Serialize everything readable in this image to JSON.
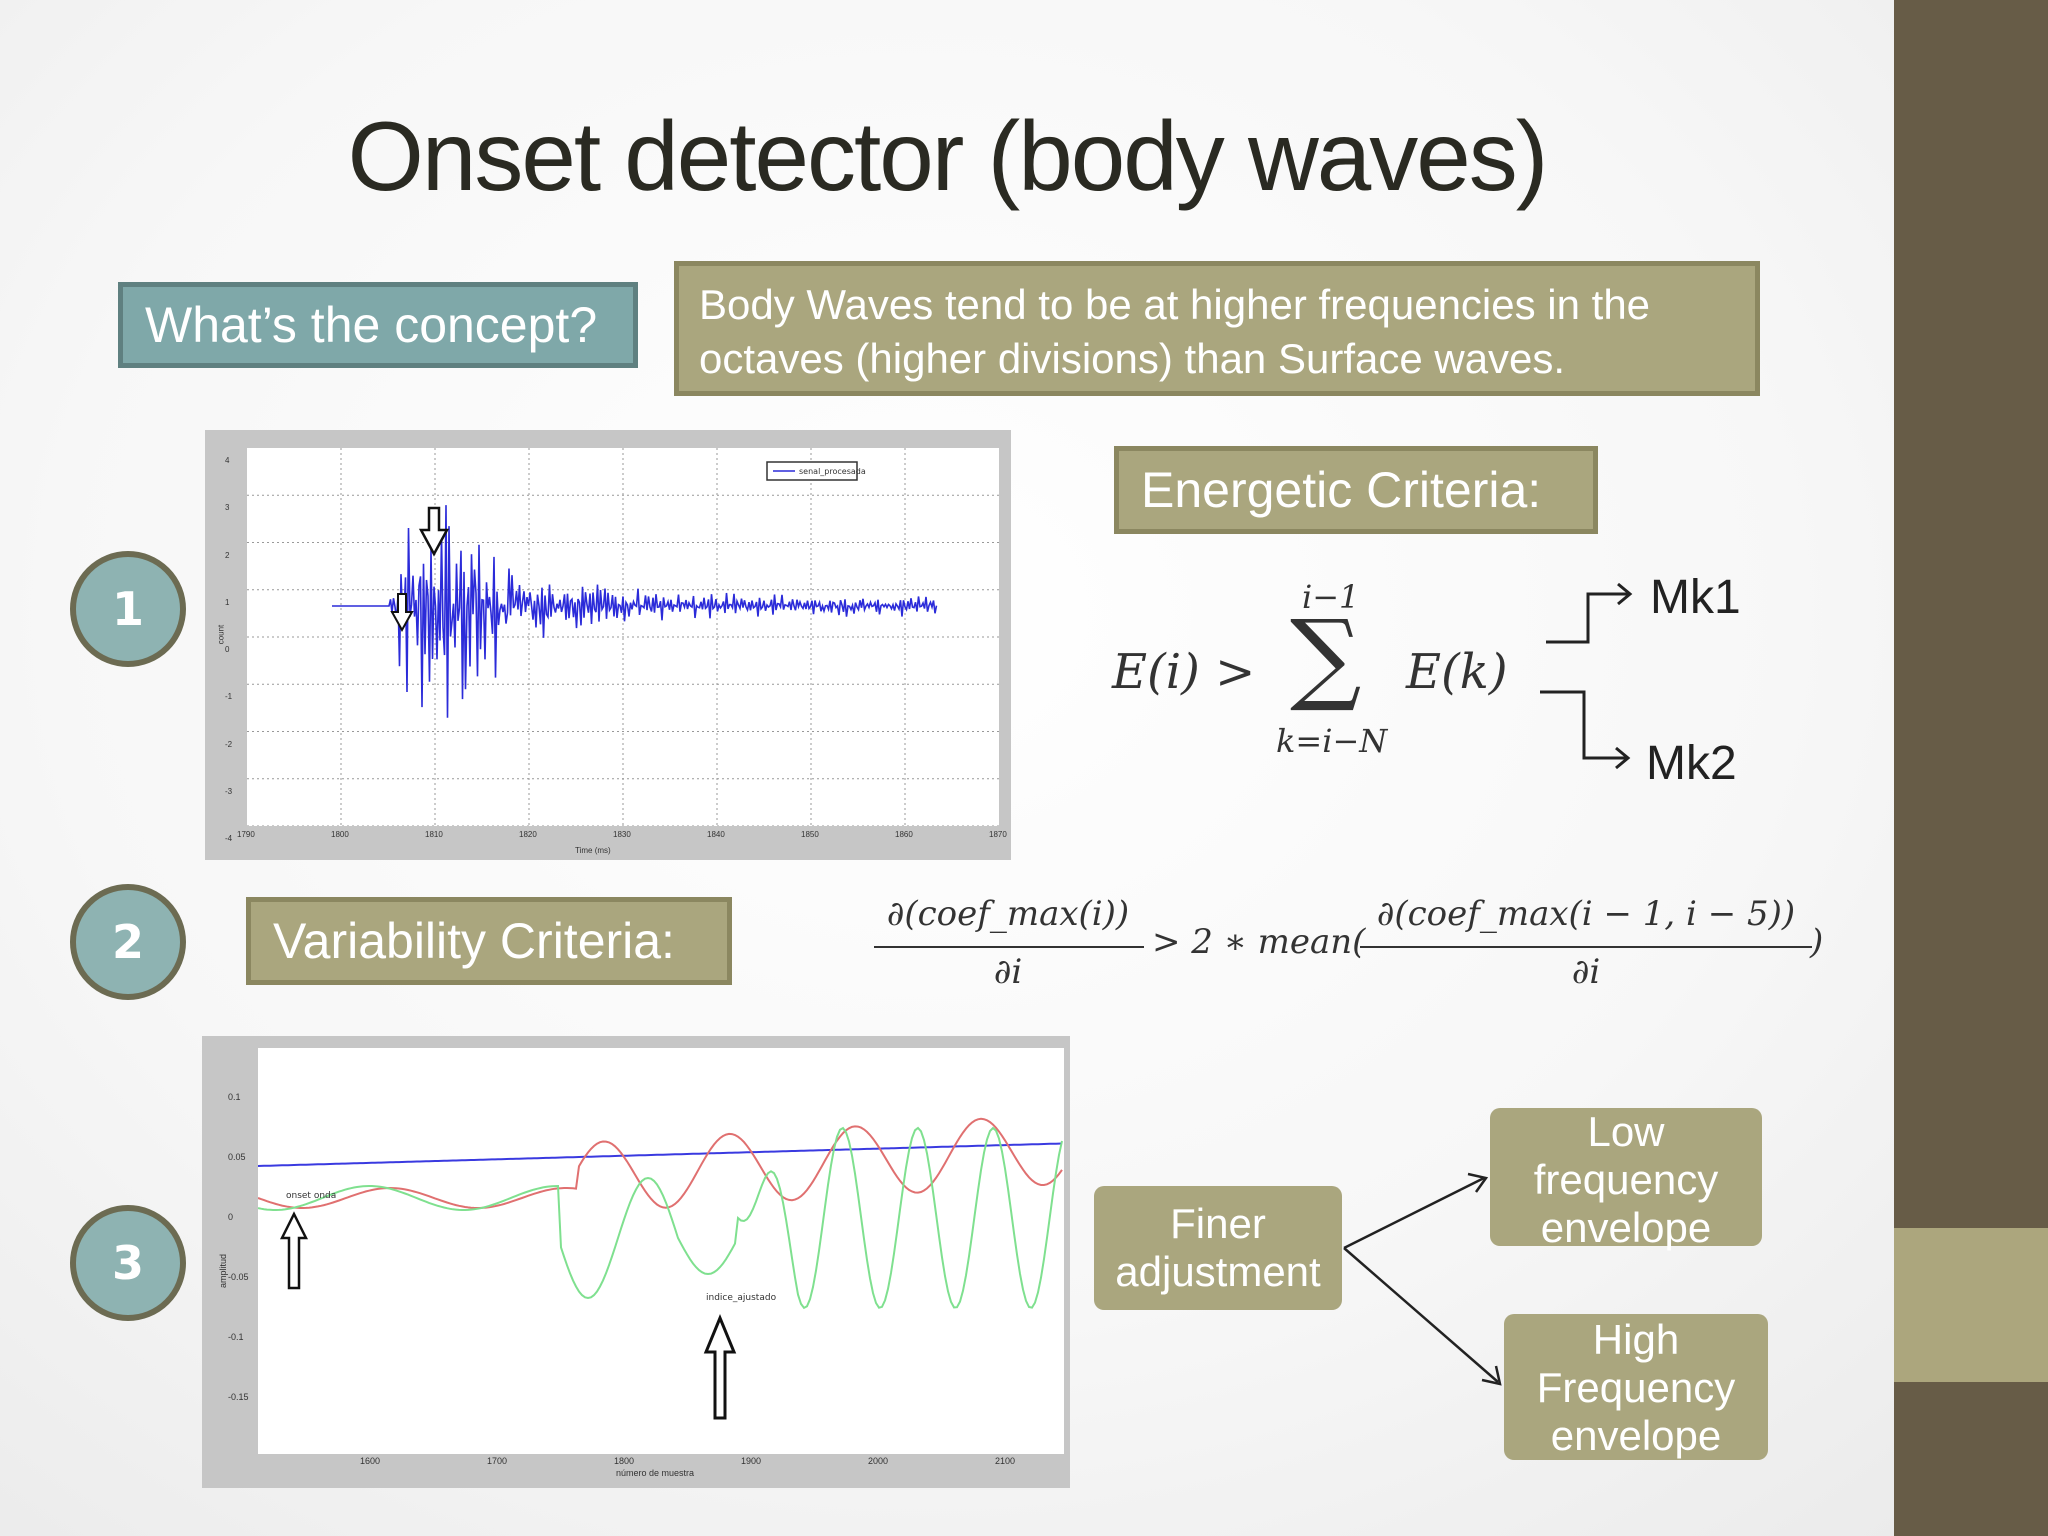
{
  "slide": {
    "title": "Onset detector (body waves)",
    "concept_label": "What’s the concept?",
    "concept_text": "Body Waves tend to be at higher frequencies in the octaves (higher divisions) than Surface waves.",
    "energetic_label": "Energetic Criteria:",
    "variability_label": "Variability Criteria:",
    "finer_label": "Finer adjustment",
    "low_label": "Low frequency envelope",
    "high_label": "High Frequency envelope",
    "mk1": "Mk1",
    "mk2": "Mk2",
    "steps": [
      "1",
      "2",
      "3"
    ]
  },
  "formula1": {
    "lhs": "E(i) >",
    "upper": "i−1",
    "sigma": "∑",
    "lower": "k=i−N",
    "rhs": "E(k)"
  },
  "formula2": {
    "num_left": "∂(coef_max(i))",
    "den_left": "∂i",
    "middle": "> 2 ∗ mean(",
    "num_right": "∂(coef_max(i − 1, i − 5))",
    "den_right": "∂i",
    "close": ")"
  },
  "colors": {
    "sidebar": "#675c47",
    "accent": "#aca67d",
    "teal": "#7fa8a9",
    "olive": "#aaa67e",
    "signal_blue": "#2b2bd9",
    "envelope_red": "#e07070",
    "envelope_green": "#7fe08f"
  },
  "plot1": {
    "legend": "senal_procesada",
    "xlabel": "Time (ms)",
    "ylabel": "count",
    "yticks": [
      "4",
      "3",
      "2",
      "1",
      "0",
      "-1",
      "-2",
      "-3",
      "-4"
    ],
    "xticks": [
      "1790",
      "1800",
      "1810",
      "1820",
      "1830",
      "1840",
      "1850",
      "1860",
      "1870"
    ]
  },
  "plot2": {
    "annotation1": "onset onda",
    "annotation2": "indice_ajustado",
    "xlabel": "número de muestra",
    "ylabel": "amplitud",
    "yticks": [
      "0.1",
      "0.05",
      "0",
      "-0.05",
      "-0.1",
      "-0.15"
    ],
    "xticks": [
      "1600",
      "1700",
      "1800",
      "1900",
      "2000",
      "2100"
    ]
  }
}
